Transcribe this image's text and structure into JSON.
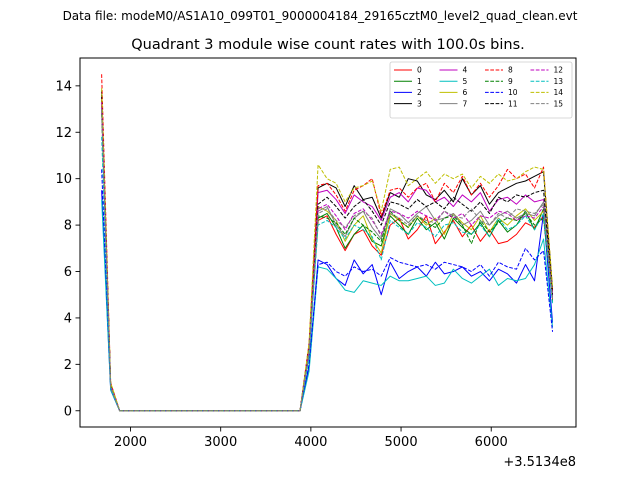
{
  "supertitle": "Data file: modeM0/AS1A10_099T01_9000004184_29165cztM0_level2_quad_clean.evt",
  "chart_data": {
    "type": "line",
    "title": "Quadrant 3 module wise count rates with 100.0s bins.",
    "xlabel": "",
    "ylabel": "",
    "x_offset_label": "+3.5134e8",
    "xlim": [
      1440,
      6940
    ],
    "ylim": [
      -0.7,
      15.2
    ],
    "x_ticks": [
      2000,
      3000,
      4000,
      5000,
      6000
    ],
    "x_tick_labels": [
      "2000",
      "3000",
      "4000",
      "5000",
      "6000"
    ],
    "y_ticks": [
      0,
      2,
      4,
      6,
      8,
      10,
      12,
      14
    ],
    "y_tick_labels": [
      "0",
      "2",
      "4",
      "6",
      "8",
      "10",
      "12",
      "14"
    ],
    "grid": false,
    "legend_position": "top-right",
    "legend_columns": 4,
    "x": [
      1680,
      1780,
      1880,
      1980,
      2080,
      2180,
      2280,
      2380,
      2480,
      2580,
      2680,
      2780,
      2880,
      2980,
      3080,
      3180,
      3280,
      3380,
      3480,
      3580,
      3680,
      3780,
      3880,
      3980,
      4080,
      4180,
      4280,
      4380,
      4480,
      4580,
      4680,
      4780,
      4880,
      4980,
      5080,
      5180,
      5280,
      5380,
      5480,
      5580,
      5680,
      5780,
      5880,
      5980,
      6080,
      6180,
      6280,
      6380,
      6480,
      6580,
      6680
    ],
    "series": [
      {
        "name": "0",
        "color": "#ff0000",
        "dash": "solid",
        "values": [
          13.5,
          1.0,
          0,
          0,
          0,
          0,
          0,
          0,
          0,
          0,
          0,
          0,
          0,
          0,
          0,
          0,
          0,
          0,
          0,
          0,
          0,
          0,
          0,
          2.6,
          8.2,
          8.4,
          7.6,
          6.9,
          7.6,
          7.8,
          7.1,
          6.7,
          8.0,
          8.3,
          7.4,
          7.8,
          8.4,
          7.2,
          7.7,
          8.2,
          7.5,
          8.0,
          7.3,
          7.8,
          7.2,
          7.3,
          7.6,
          8.1,
          7.9,
          8.4,
          4.8
        ]
      },
      {
        "name": "1",
        "color": "#008000",
        "dash": "solid",
        "values": [
          13.0,
          1.1,
          0,
          0,
          0,
          0,
          0,
          0,
          0,
          0,
          0,
          0,
          0,
          0,
          0,
          0,
          0,
          0,
          0,
          0,
          0,
          0,
          0,
          2.5,
          8.3,
          8.5,
          7.9,
          7.0,
          7.6,
          8.0,
          7.3,
          7.1,
          8.4,
          8.0,
          7.6,
          8.3,
          7.8,
          8.1,
          7.4,
          8.3,
          7.9,
          7.6,
          8.1,
          7.5,
          8.2,
          7.7,
          8.0,
          8.6,
          7.8,
          8.7,
          5.0
        ]
      },
      {
        "name": "2",
        "color": "#0000ff",
        "dash": "solid",
        "values": [
          9.5,
          0.9,
          0,
          0,
          0,
          0,
          0,
          0,
          0,
          0,
          0,
          0,
          0,
          0,
          0,
          0,
          0,
          0,
          0,
          0,
          0,
          0,
          0,
          1.9,
          6.5,
          6.3,
          5.7,
          5.4,
          6.5,
          5.9,
          6.3,
          5.0,
          6.4,
          5.7,
          6.0,
          6.2,
          5.8,
          6.4,
          5.9,
          6.0,
          6.2,
          5.8,
          6.0,
          5.6,
          6.1,
          5.9,
          5.5,
          6.3,
          5.6,
          8.5,
          3.8
        ]
      },
      {
        "name": "3",
        "color": "#000000",
        "dash": "solid",
        "values": [
          13.8,
          1.0,
          0,
          0,
          0,
          0,
          0,
          0,
          0,
          0,
          0,
          0,
          0,
          0,
          0,
          0,
          0,
          0,
          0,
          0,
          0,
          0,
          0,
          2.8,
          9.6,
          9.8,
          9.6,
          8.8,
          9.7,
          9.1,
          9.2,
          8.3,
          9.4,
          9.2,
          10.0,
          9.9,
          9.3,
          9.1,
          9.5,
          9.0,
          10.0,
          9.3,
          9.7,
          8.9,
          9.4,
          9.6,
          9.8,
          9.9,
          10.1,
          10.3,
          5.2
        ]
      },
      {
        "name": "4",
        "color": "#bf00bf",
        "dash": "solid",
        "values": [
          13.2,
          1.1,
          0,
          0,
          0,
          0,
          0,
          0,
          0,
          0,
          0,
          0,
          0,
          0,
          0,
          0,
          0,
          0,
          0,
          0,
          0,
          0,
          0,
          2.7,
          9.4,
          9.5,
          9.1,
          8.5,
          9.3,
          9.0,
          8.8,
          8.2,
          9.2,
          9.4,
          9.0,
          9.6,
          9.5,
          9.0,
          9.2,
          8.8,
          9.3,
          9.0,
          9.4,
          8.6,
          9.1,
          9.2,
          8.9,
          9.3,
          9.0,
          9.1,
          5.0
        ]
      },
      {
        "name": "5",
        "color": "#00bfbf",
        "dash": "solid",
        "values": [
          9.1,
          0.9,
          0,
          0,
          0,
          0,
          0,
          0,
          0,
          0,
          0,
          0,
          0,
          0,
          0,
          0,
          0,
          0,
          0,
          0,
          0,
          0,
          0,
          1.7,
          6.2,
          6.1,
          5.7,
          5.2,
          5.1,
          5.6,
          5.5,
          5.4,
          5.8,
          5.6,
          5.6,
          5.7,
          5.8,
          5.4,
          5.5,
          6.1,
          5.7,
          5.5,
          5.8,
          6.1,
          5.4,
          5.7,
          5.6,
          5.7,
          6.3,
          7.4,
          3.6
        ]
      },
      {
        "name": "6",
        "color": "#bfbf00",
        "dash": "solid",
        "values": [
          13.4,
          1.2,
          0,
          0,
          0,
          0,
          0,
          0,
          0,
          0,
          0,
          0,
          0,
          0,
          0,
          0,
          0,
          0,
          0,
          0,
          0,
          0,
          0,
          2.6,
          8.8,
          8.6,
          8.2,
          7.3,
          8.0,
          8.4,
          7.4,
          6.8,
          8.5,
          8.2,
          7.9,
          8.4,
          8.0,
          8.3,
          7.6,
          8.5,
          8.1,
          7.8,
          8.4,
          7.7,
          8.3,
          8.0,
          8.4,
          8.7,
          8.2,
          8.6,
          4.9
        ]
      },
      {
        "name": "7",
        "color": "#808080",
        "dash": "solid",
        "values": [
          13.1,
          1.1,
          0,
          0,
          0,
          0,
          0,
          0,
          0,
          0,
          0,
          0,
          0,
          0,
          0,
          0,
          0,
          0,
          0,
          0,
          0,
          0,
          0,
          2.5,
          8.6,
          8.8,
          8.0,
          7.5,
          8.3,
          8.6,
          7.9,
          7.4,
          8.7,
          8.5,
          8.1,
          8.5,
          8.8,
          8.2,
          8.3,
          8.5,
          8.0,
          8.2,
          8.6,
          8.0,
          8.4,
          8.6,
          8.3,
          8.5,
          8.4,
          9.0,
          5.0
        ]
      },
      {
        "name": "8",
        "color": "#ff0000",
        "dash": "dashed",
        "values": [
          14.5,
          1.2,
          0,
          0,
          0,
          0,
          0,
          0,
          0,
          0,
          0,
          0,
          0,
          0,
          0,
          0,
          0,
          0,
          0,
          0,
          0,
          0,
          0,
          2.9,
          9.7,
          9.8,
          9.3,
          8.6,
          9.5,
          9.7,
          10.0,
          8.4,
          9.5,
          9.6,
          9.2,
          9.6,
          9.8,
          9.0,
          9.8,
          9.4,
          10.1,
          9.3,
          9.8,
          9.2,
          9.7,
          10.4,
          10.0,
          10.2,
          9.6,
          10.5,
          5.1
        ]
      },
      {
        "name": "9",
        "color": "#008000",
        "dash": "dashed",
        "values": [
          12.8,
          1.0,
          0,
          0,
          0,
          0,
          0,
          0,
          0,
          0,
          0,
          0,
          0,
          0,
          0,
          0,
          0,
          0,
          0,
          0,
          0,
          0,
          0,
          2.4,
          8.4,
          8.3,
          8.1,
          7.6,
          8.3,
          8.0,
          7.7,
          7.3,
          8.6,
          8.2,
          7.9,
          8.4,
          8.1,
          7.9,
          8.3,
          8.4,
          8.0,
          7.2,
          8.2,
          7.7,
          8.1,
          8.3,
          8.2,
          8.5,
          8.0,
          8.3,
          4.7
        ]
      },
      {
        "name": "10",
        "color": "#0000ff",
        "dash": "dashed",
        "values": [
          10.4,
          1.0,
          0,
          0,
          0,
          0,
          0,
          0,
          0,
          0,
          0,
          0,
          0,
          0,
          0,
          0,
          0,
          0,
          0,
          0,
          0,
          0,
          0,
          2.0,
          6.3,
          6.4,
          6.0,
          5.8,
          6.2,
          6.0,
          6.1,
          5.8,
          6.6,
          6.4,
          6.3,
          6.2,
          6.3,
          6.1,
          6.4,
          6.3,
          6.2,
          6.0,
          6.3,
          5.8,
          6.4,
          6.2,
          6.1,
          7.0,
          6.5,
          6.9,
          3.4
        ]
      },
      {
        "name": "11",
        "color": "#000000",
        "dash": "dashed",
        "values": [
          13.6,
          1.1,
          0,
          0,
          0,
          0,
          0,
          0,
          0,
          0,
          0,
          0,
          0,
          0,
          0,
          0,
          0,
          0,
          0,
          0,
          0,
          0,
          0,
          2.7,
          8.9,
          9.2,
          8.8,
          8.3,
          8.8,
          9.1,
          8.6,
          8.0,
          9.0,
          8.9,
          8.7,
          9.1,
          8.8,
          9.0,
          8.7,
          9.2,
          8.9,
          8.6,
          9.0,
          8.5,
          9.2,
          9.0,
          9.3,
          9.2,
          9.4,
          9.5,
          5.0
        ]
      },
      {
        "name": "12",
        "color": "#bf00bf",
        "dash": "dashed",
        "values": [
          13.3,
          1.1,
          0,
          0,
          0,
          0,
          0,
          0,
          0,
          0,
          0,
          0,
          0,
          0,
          0,
          0,
          0,
          0,
          0,
          0,
          0,
          0,
          0,
          2.6,
          8.7,
          8.9,
          8.4,
          7.8,
          8.5,
          8.7,
          8.2,
          7.6,
          8.6,
          8.5,
          8.3,
          8.6,
          8.4,
          8.2,
          8.6,
          8.3,
          8.5,
          8.0,
          8.4,
          8.3,
          8.6,
          8.5,
          8.2,
          8.4,
          8.3,
          8.8,
          4.9
        ]
      },
      {
        "name": "13",
        "color": "#00bfbf",
        "dash": "dashed",
        "values": [
          11.8,
          1.0,
          0,
          0,
          0,
          0,
          0,
          0,
          0,
          0,
          0,
          0,
          0,
          0,
          0,
          0,
          0,
          0,
          0,
          0,
          0,
          0,
          0,
          2.3,
          8.0,
          8.2,
          7.9,
          7.4,
          8.0,
          7.8,
          7.5,
          6.5,
          8.2,
          7.9,
          7.6,
          8.1,
          7.9,
          7.5,
          8.0,
          8.1,
          7.7,
          7.6,
          8.0,
          7.5,
          8.3,
          7.8,
          8.0,
          8.4,
          7.8,
          8.5,
          4.6
        ]
      },
      {
        "name": "14",
        "color": "#bfbf00",
        "dash": "dashed",
        "values": [
          13.9,
          1.2,
          0,
          0,
          0,
          0,
          0,
          0,
          0,
          0,
          0,
          0,
          0,
          0,
          0,
          0,
          0,
          0,
          0,
          0,
          0,
          0,
          0,
          2.9,
          10.6,
          10.0,
          9.8,
          9.0,
          9.6,
          9.7,
          9.9,
          8.6,
          10.4,
          10.5,
          9.7,
          10.0,
          10.3,
          9.8,
          10.2,
          10.0,
          10.2,
          9.6,
          10.1,
          9.8,
          10.2,
          9.9,
          10.0,
          10.3,
          10.5,
          10.4,
          5.3
        ]
      },
      {
        "name": "15",
        "color": "#808080",
        "dash": "dashed",
        "values": [
          13.0,
          1.0,
          0,
          0,
          0,
          0,
          0,
          0,
          0,
          0,
          0,
          0,
          0,
          0,
          0,
          0,
          0,
          0,
          0,
          0,
          0,
          0,
          0,
          2.5,
          8.5,
          8.7,
          8.2,
          7.9,
          8.4,
          8.6,
          8.3,
          7.5,
          8.5,
          8.3,
          8.0,
          8.4,
          8.2,
          8.1,
          8.6,
          8.4,
          8.3,
          8.7,
          8.2,
          8.0,
          8.5,
          8.3,
          8.7,
          8.6,
          8.5,
          8.9,
          4.8
        ]
      }
    ]
  }
}
